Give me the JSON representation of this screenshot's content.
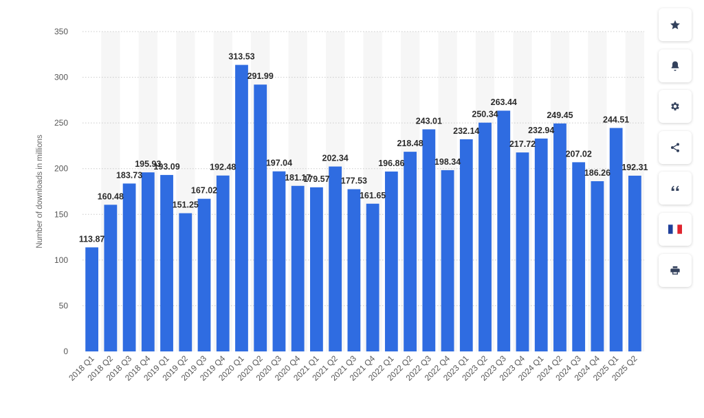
{
  "chart_data": {
    "type": "bar",
    "ylabel": "Number of downloads in millions",
    "xlabel": "",
    "ylim": [
      0,
      350
    ],
    "yticks": [
      0,
      50,
      100,
      150,
      200,
      250,
      300,
      350
    ],
    "grid": true,
    "categories": [
      "2018 Q1",
      "2018 Q2",
      "2018 Q3",
      "2018 Q4",
      "2019 Q1",
      "2019 Q2",
      "2019 Q3",
      "2019 Q4",
      "2020 Q1",
      "2020 Q2",
      "2020 Q3",
      "2020 Q4",
      "2021 Q1",
      "2021 Q2",
      "2021 Q3",
      "2021 Q4",
      "2022 Q1",
      "2022 Q2",
      "2022 Q3",
      "2022 Q4",
      "2023 Q1",
      "2023 Q2",
      "2023 Q3",
      "2023 Q4",
      "2024 Q1",
      "2024 Q2",
      "2024 Q3",
      "2024 Q4",
      "2025 Q1",
      "2025 Q2"
    ],
    "values": [
      113.87,
      160.48,
      183.73,
      195.93,
      193.09,
      151.25,
      167.02,
      192.48,
      313.53,
      291.99,
      197.04,
      181.17,
      179.57,
      202.34,
      177.53,
      161.65,
      196.86,
      218.48,
      243.01,
      198.34,
      232.14,
      250.34,
      263.44,
      217.72,
      232.94,
      249.45,
      207.02,
      186.26,
      244.51,
      192.31
    ],
    "bar_color": "#2f6ce1",
    "stripe_color": "#f6f6f6"
  },
  "toolbar": {
    "items": [
      {
        "icon": "star-icon"
      },
      {
        "icon": "bell-icon"
      },
      {
        "icon": "gear-icon"
      },
      {
        "icon": "share-icon"
      },
      {
        "icon": "quote-icon"
      },
      {
        "icon": "french-flag-icon"
      },
      {
        "icon": "print-icon"
      }
    ]
  }
}
